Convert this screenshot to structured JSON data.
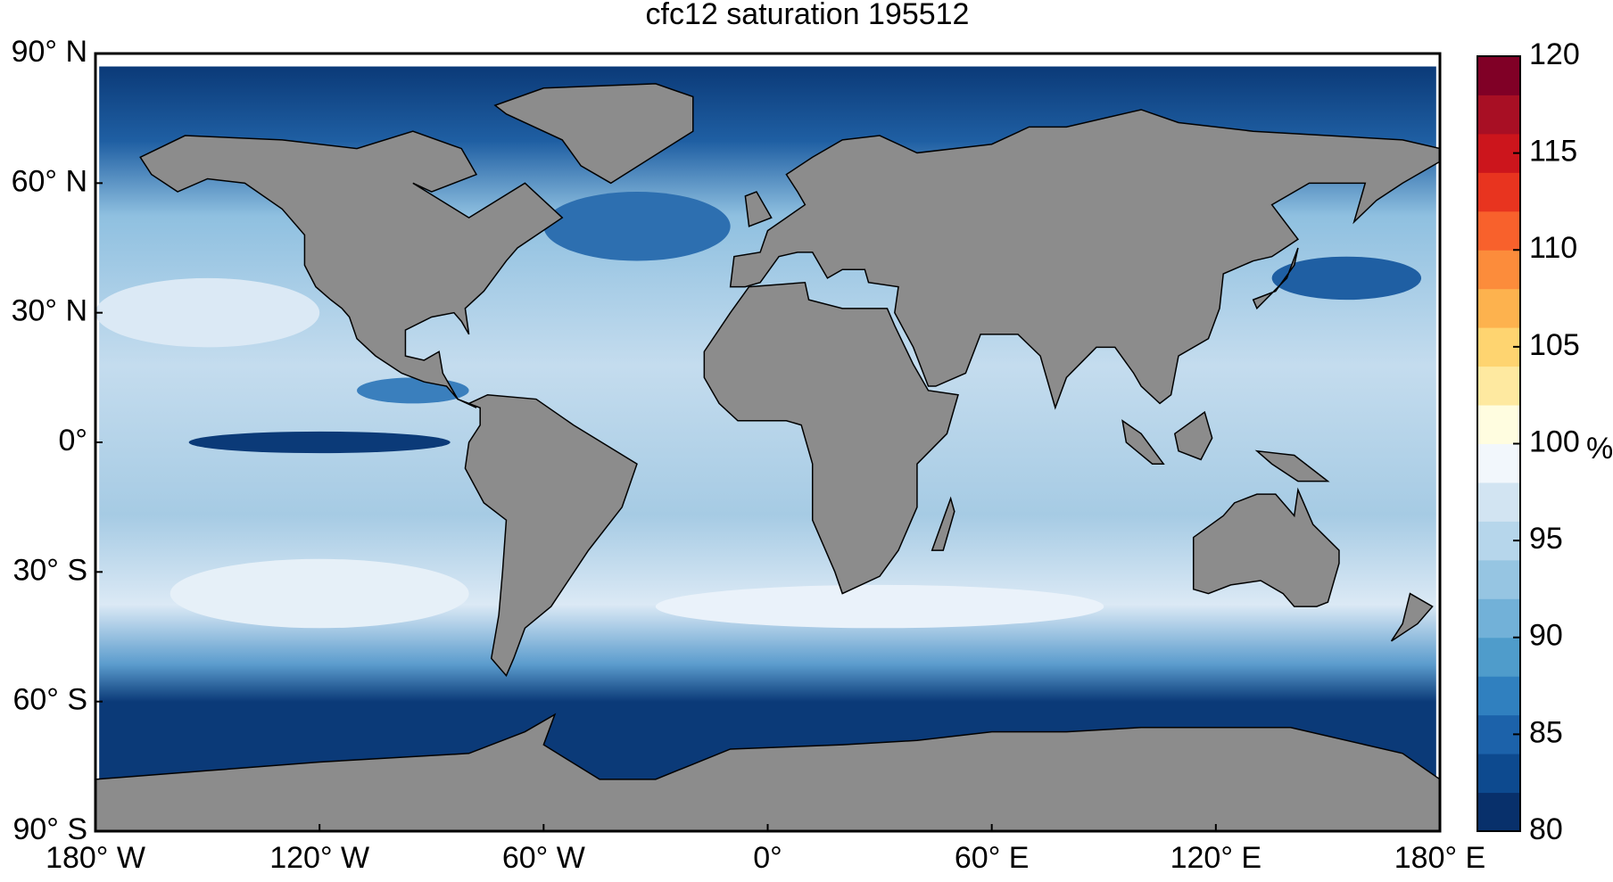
{
  "chart_data": {
    "type": "map",
    "title": "cfc12 saturation 195512",
    "xlim": [
      -180,
      180
    ],
    "xticks": [
      {
        "value": -180,
        "label": "180° W"
      },
      {
        "value": -120,
        "label": "120° W"
      },
      {
        "value": -60,
        "label": "60° W"
      },
      {
        "value": 0,
        "label": "0°"
      },
      {
        "value": 60,
        "label": "60° E"
      },
      {
        "value": 120,
        "label": "120° E"
      },
      {
        "value": 180,
        "label": "180° E"
      }
    ],
    "ylim": [
      -90,
      90
    ],
    "yticks": [
      {
        "value": 90,
        "label": "90° N"
      },
      {
        "value": 60,
        "label": "60° N"
      },
      {
        "value": 30,
        "label": "30° N"
      },
      {
        "value": 0,
        "label": "0°"
      },
      {
        "value": -30,
        "label": "30° S"
      },
      {
        "value": -60,
        "label": "60° S"
      },
      {
        "value": -90,
        "label": "90° S"
      }
    ],
    "colorbar": {
      "label": "%",
      "lim": [
        80,
        120
      ],
      "ticks": [
        80,
        85,
        90,
        95,
        100,
        105,
        110,
        115,
        120
      ],
      "colors": [
        "#08306b",
        "#0d4a8f",
        "#1c62aa",
        "#3080bf",
        "#4f9ccb",
        "#72b1d8",
        "#96c5e2",
        "#b6d6eb",
        "#d2e4f2",
        "#f2f7fc",
        "#fffde0",
        "#fee9a0",
        "#fed470",
        "#fdb24e",
        "#fc8c3b",
        "#f8612c",
        "#e8341f",
        "#cc151c",
        "#a80f24",
        "#800026"
      ]
    }
  }
}
